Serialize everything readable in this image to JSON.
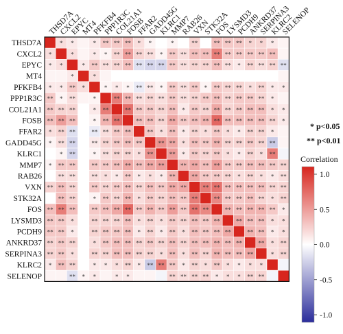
{
  "chart_data": {
    "type": "heatmap",
    "genes": [
      "THSD7A",
      "CXCL2",
      "EPYC",
      "MT4",
      "PFKFB4",
      "PPP1R3C",
      "COL21A1",
      "FOSB",
      "FFAR2",
      "GADD45G",
      "KLRC1",
      "MMP7",
      "RAB26",
      "VXN",
      "STK32A",
      "FOS",
      "LYSMD3",
      "PCDH9",
      "ANKRD37",
      "SERPINA3",
      "KLRC2",
      "SELENOP"
    ],
    "values": [
      [
        1.0,
        0.15,
        0.1,
        0.05,
        0.1,
        0.25,
        0.25,
        0.3,
        0.15,
        0.05,
        0.0,
        0.05,
        0.0,
        0.2,
        0.0,
        0.3,
        0.25,
        0.25,
        0.2,
        0.2,
        0.1,
        0.05
      ],
      [
        0.15,
        1.0,
        0.15,
        0.05,
        0.1,
        0.05,
        0.2,
        0.45,
        0.2,
        0.15,
        0.05,
        0.25,
        0.15,
        0.3,
        0.3,
        0.6,
        0.25,
        0.25,
        0.25,
        0.25,
        0.3,
        0.05
      ],
      [
        0.1,
        0.15,
        1.0,
        0.1,
        0.25,
        0.15,
        0.2,
        0.3,
        -0.15,
        -0.2,
        -0.2,
        0.25,
        0.15,
        0.2,
        0.2,
        0.3,
        0.15,
        0.1,
        0.2,
        0.15,
        0.2,
        -0.15
      ],
      [
        0.05,
        0.05,
        0.1,
        1.0,
        0.15,
        0.05,
        0.0,
        0.0,
        0.0,
        0.0,
        0.0,
        0.0,
        0.0,
        0.0,
        0.0,
        0.0,
        0.0,
        0.0,
        0.0,
        0.0,
        0.0,
        0.05
      ],
      [
        0.1,
        0.1,
        0.25,
        0.15,
        1.0,
        0.05,
        0.1,
        0.05,
        -0.1,
        0.1,
        0.05,
        0.25,
        0.15,
        0.25,
        0.05,
        0.25,
        0.2,
        0.2,
        0.15,
        0.2,
        0.1,
        0.1
      ],
      [
        0.25,
        0.05,
        0.15,
        0.05,
        0.05,
        1.0,
        0.6,
        0.35,
        0.15,
        0.2,
        0.15,
        0.25,
        0.15,
        0.2,
        0.25,
        0.3,
        0.2,
        0.25,
        0.25,
        0.2,
        0.1,
        0.05
      ],
      [
        0.25,
        0.2,
        0.2,
        0.0,
        0.1,
        0.6,
        1.0,
        0.65,
        0.25,
        0.25,
        0.2,
        0.3,
        0.1,
        0.25,
        0.2,
        0.4,
        0.2,
        0.25,
        0.3,
        0.3,
        0.15,
        0.1
      ],
      [
        0.3,
        0.45,
        0.3,
        0.0,
        0.05,
        0.35,
        0.65,
        1.0,
        0.3,
        0.3,
        0.2,
        0.4,
        0.25,
        0.3,
        0.35,
        0.7,
        0.3,
        0.3,
        0.3,
        0.3,
        0.2,
        0.1
      ],
      [
        0.15,
        0.2,
        -0.15,
        0.0,
        -0.1,
        0.15,
        0.25,
        0.3,
        1.0,
        0.25,
        0.15,
        0.3,
        0.1,
        0.2,
        0.15,
        0.25,
        0.15,
        0.1,
        0.2,
        0.2,
        0.1,
        0.05
      ],
      [
        0.05,
        0.15,
        -0.2,
        0.0,
        0.1,
        0.2,
        0.25,
        0.3,
        0.25,
        1.0,
        0.5,
        0.4,
        0.15,
        0.3,
        0.25,
        0.35,
        0.2,
        0.2,
        0.25,
        0.2,
        -0.25,
        0.05
      ],
      [
        0.0,
        0.05,
        -0.2,
        0.0,
        0.05,
        0.15,
        0.2,
        0.2,
        0.15,
        0.5,
        1.0,
        0.45,
        0.1,
        0.25,
        0.2,
        0.25,
        0.15,
        0.1,
        0.2,
        0.15,
        0.6,
        -0.05
      ],
      [
        0.05,
        0.25,
        0.25,
        0.0,
        0.25,
        0.25,
        0.3,
        0.4,
        0.3,
        0.4,
        0.45,
        1.0,
        0.35,
        0.4,
        0.3,
        0.45,
        0.25,
        0.25,
        0.3,
        0.3,
        0.25,
        0.2
      ],
      [
        0.0,
        0.15,
        0.15,
        0.0,
        0.15,
        0.15,
        0.1,
        0.25,
        0.1,
        0.15,
        0.1,
        0.35,
        1.0,
        0.4,
        0.25,
        0.25,
        0.2,
        0.15,
        0.2,
        0.15,
        0.1,
        0.15
      ],
      [
        0.2,
        0.3,
        0.2,
        0.0,
        0.25,
        0.2,
        0.25,
        0.3,
        0.2,
        0.3,
        0.25,
        0.4,
        0.4,
        1.0,
        0.6,
        0.65,
        0.3,
        0.3,
        0.3,
        0.3,
        0.2,
        0.2
      ],
      [
        0.0,
        0.3,
        0.2,
        0.0,
        0.05,
        0.25,
        0.2,
        0.35,
        0.15,
        0.25,
        0.2,
        0.3,
        0.25,
        0.6,
        1.0,
        0.55,
        0.25,
        0.25,
        0.3,
        0.2,
        0.15,
        0.2
      ],
      [
        0.3,
        0.6,
        0.3,
        0.0,
        0.25,
        0.3,
        0.4,
        0.7,
        0.25,
        0.35,
        0.25,
        0.45,
        0.25,
        0.65,
        0.55,
        1.0,
        0.35,
        0.3,
        0.35,
        0.35,
        0.25,
        0.1
      ],
      [
        0.25,
        0.25,
        0.15,
        0.0,
        0.2,
        0.2,
        0.2,
        0.3,
        0.15,
        0.2,
        0.15,
        0.25,
        0.2,
        0.3,
        0.25,
        0.35,
        1.0,
        0.4,
        0.3,
        0.3,
        0.15,
        0.15
      ],
      [
        0.25,
        0.25,
        0.1,
        0.0,
        0.2,
        0.25,
        0.25,
        0.3,
        0.1,
        0.2,
        0.1,
        0.25,
        0.15,
        0.3,
        0.25,
        0.3,
        0.4,
        1.0,
        0.35,
        0.3,
        0.1,
        0.15
      ],
      [
        0.2,
        0.25,
        0.2,
        0.0,
        0.15,
        0.25,
        0.3,
        0.3,
        0.2,
        0.25,
        0.2,
        0.3,
        0.2,
        0.3,
        0.3,
        0.35,
        0.3,
        0.35,
        1.0,
        0.4,
        0.15,
        0.2
      ],
      [
        0.2,
        0.25,
        0.15,
        0.0,
        0.2,
        0.2,
        0.3,
        0.3,
        0.2,
        0.2,
        0.15,
        0.3,
        0.15,
        0.3,
        0.2,
        0.35,
        0.3,
        0.3,
        0.4,
        1.0,
        0.15,
        0.2
      ],
      [
        0.1,
        0.3,
        0.2,
        0.0,
        0.1,
        0.1,
        0.15,
        0.2,
        0.1,
        -0.25,
        0.6,
        0.25,
        0.1,
        0.2,
        0.15,
        0.25,
        0.15,
        0.1,
        0.15,
        0.15,
        1.0,
        -0.05
      ],
      [
        0.05,
        0.05,
        -0.15,
        0.05,
        0.1,
        0.05,
        0.1,
        0.1,
        0.05,
        0.05,
        -0.05,
        0.2,
        0.15,
        0.2,
        0.2,
        0.1,
        0.15,
        0.15,
        0.2,
        0.2,
        -0.05,
        1.0
      ]
    ],
    "significance": [
      [
        "",
        "*",
        "*",
        "",
        "*",
        "**",
        "**",
        "**",
        "*",
        "*",
        "",
        "*",
        "",
        "**",
        "",
        "**",
        "**",
        "**",
        "*",
        "*",
        "*",
        ""
      ],
      [
        "*",
        "",
        "*",
        "",
        "*",
        "*",
        "**",
        "**",
        "**",
        "**",
        "*",
        "**",
        "**",
        "**",
        "**",
        "**",
        "**",
        "**",
        "**",
        "**",
        "**",
        ""
      ],
      [
        "*",
        "*",
        "",
        "*",
        "**",
        "**",
        "**",
        "**",
        "**",
        "**",
        "**",
        "**",
        "**",
        "**",
        "**",
        "**",
        "**",
        "*",
        "**",
        "**",
        "**",
        "**"
      ],
      [
        "",
        "",
        "*",
        "",
        "*",
        "",
        "",
        "",
        "",
        "",
        "",
        "",
        "",
        "",
        "",
        "",
        "",
        "",
        "",
        "",
        "",
        ""
      ],
      [
        "*",
        "*",
        "**",
        "*",
        "",
        "*",
        "*",
        "*",
        "**",
        "**",
        "*",
        "**",
        "**",
        "**",
        "*",
        "**",
        "**",
        "**",
        "*",
        "**",
        "*",
        "*"
      ],
      [
        "**",
        "*",
        "**",
        "",
        "*",
        "",
        "**",
        "**",
        "**",
        "**",
        "**",
        "**",
        "**",
        "**",
        "**",
        "**",
        "**",
        "**",
        "**",
        "**",
        "*",
        ""
      ],
      [
        "**",
        "**",
        "**",
        "",
        "*",
        "**",
        "",
        "**",
        "**",
        "**",
        "**",
        "**",
        "*",
        "**",
        "**",
        "**",
        "**",
        "**",
        "**",
        "**",
        "*",
        "*"
      ],
      [
        "**",
        "**",
        "**",
        "",
        "*",
        "**",
        "**",
        "",
        "**",
        "**",
        "**",
        "**",
        "**",
        "**",
        "**",
        "**",
        "**",
        "**",
        "**",
        "**",
        "**",
        "*"
      ],
      [
        "*",
        "**",
        "**",
        "",
        "**",
        "**",
        "**",
        "**",
        "",
        "**",
        "*",
        "**",
        "*",
        "**",
        "*",
        "**",
        "*",
        "*",
        "**",
        "**",
        "*",
        ""
      ],
      [
        "*",
        "**",
        "**",
        "",
        "**",
        "**",
        "**",
        "**",
        "**",
        "",
        "**",
        "**",
        "*",
        "**",
        "**",
        "**",
        "**",
        "**",
        "**",
        "**",
        "**",
        ""
      ],
      [
        "",
        "*",
        "**",
        "",
        "*",
        "**",
        "**",
        "**",
        "*",
        "**",
        "",
        "**",
        "*",
        "**",
        "**",
        "**",
        "*",
        "*",
        "**",
        "*",
        "**",
        ""
      ],
      [
        "*",
        "**",
        "**",
        "",
        "**",
        "**",
        "**",
        "**",
        "**",
        "**",
        "**",
        "",
        "**",
        "**",
        "**",
        "**",
        "**",
        "**",
        "**",
        "**",
        "**",
        "**"
      ],
      [
        "",
        "**",
        "**",
        "",
        "**",
        "*",
        "*",
        "**",
        "*",
        "*",
        "*",
        "**",
        "",
        "**",
        "**",
        "**",
        "**",
        "*",
        "**",
        "*",
        "*",
        "**"
      ],
      [
        "**",
        "**",
        "**",
        "",
        "**",
        "**",
        "**",
        "**",
        "**",
        "**",
        "**",
        "**",
        "**",
        "",
        "**",
        "**",
        "**",
        "**",
        "**",
        "**",
        "**",
        "**"
      ],
      [
        "",
        "**",
        "**",
        "",
        "*",
        "**",
        "**",
        "**",
        "*",
        "**",
        "**",
        "**",
        "**",
        "**",
        "",
        "**",
        "**",
        "**",
        "**",
        "**",
        "*",
        "**"
      ],
      [
        "**",
        "**",
        "**",
        "",
        "**",
        "**",
        "**",
        "**",
        "**",
        "**",
        "**",
        "**",
        "**",
        "**",
        "**",
        "",
        "**",
        "**",
        "**",
        "**",
        "**",
        "*"
      ],
      [
        "**",
        "**",
        "*",
        "",
        "**",
        "**",
        "**",
        "**",
        "*",
        "**",
        "*",
        "**",
        "**",
        "**",
        "**",
        "**",
        "",
        "**",
        "**",
        "**",
        "*",
        "*"
      ],
      [
        "**",
        "**",
        "*",
        "",
        "**",
        "**",
        "**",
        "**",
        "*",
        "**",
        "*",
        "**",
        "*",
        "**",
        "**",
        "**",
        "**",
        "",
        "**",
        "**",
        "*",
        "*"
      ],
      [
        "**",
        "**",
        "**",
        "",
        "*",
        "**",
        "**",
        "**",
        "**",
        "**",
        "**",
        "**",
        "**",
        "**",
        "**",
        "**",
        "**",
        "**",
        "",
        "**",
        "*",
        "**"
      ],
      [
        "**",
        "**",
        "*",
        "",
        "**",
        "**",
        "**",
        "**",
        "**",
        "**",
        "*",
        "**",
        "*",
        "**",
        "**",
        "**",
        "**",
        "**",
        "**",
        "",
        "*",
        "**"
      ],
      [
        "*",
        "**",
        "**",
        "",
        "*",
        "*",
        "*",
        "**",
        "*",
        "**",
        "**",
        "**",
        "*",
        "**",
        "*",
        "**",
        "*",
        "*",
        "*",
        "*",
        "",
        ""
      ],
      [
        "",
        "",
        "**",
        "*",
        "*",
        "",
        "*",
        "*",
        "",
        "",
        "",
        "**",
        "**",
        "**",
        "**",
        "*",
        "*",
        "*",
        "**",
        "**",
        "",
        ""
      ]
    ],
    "legend_notes": [
      "* p<0.05",
      "** p<0.01"
    ],
    "colorbar": {
      "title": "Correlation",
      "ticks": [
        "1.0",
        "0.5",
        "0.0",
        "-0.5",
        "-1.0"
      ],
      "range": [
        -1,
        1
      ],
      "colors": {
        "high": "#d7261e",
        "mid": "#ffffff",
        "low": "#2b2d9b"
      }
    }
  }
}
